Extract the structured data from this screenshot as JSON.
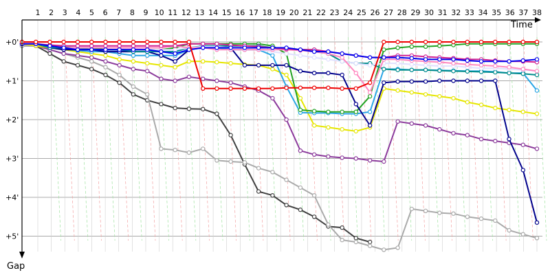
{
  "chart_data": {
    "type": "line",
    "title": "",
    "xlabel": "Time",
    "ylabel": "Gap",
    "x_ticks": [
      "1",
      "2",
      "3",
      "4",
      "5",
      "6",
      "7",
      "8",
      "9",
      "10",
      "11",
      "12",
      "13",
      "14",
      "15",
      "16",
      "17",
      "18",
      "19",
      "20",
      "21",
      "22",
      "23",
      "24",
      "25",
      "26",
      "27",
      "28",
      "29",
      "30",
      "31",
      "32",
      "33",
      "34",
      "35",
      "36",
      "37",
      "38"
    ],
    "y_ticks": [
      "+0'",
      "+1'",
      "+2'",
      "+3'",
      "+4'",
      "+5'"
    ],
    "ylim": [
      0,
      5.5
    ],
    "grid": true,
    "series": [
      {
        "color": "#404040",
        "values": [
          0.1,
          0.1,
          0.3,
          0.5,
          0.6,
          0.7,
          0.85,
          1.05,
          1.35,
          1.5,
          1.6,
          1.7,
          1.72,
          1.73,
          1.85,
          2.4,
          3.15,
          3.85,
          3.95,
          4.2,
          4.32,
          4.5,
          4.75,
          4.78,
          5.05,
          5.15,
          null,
          null,
          null,
          null,
          null,
          null,
          null,
          null,
          null,
          null,
          null,
          null
        ]
      },
      {
        "color": "#aaaaaa",
        "values": [
          0.1,
          0.1,
          0.2,
          0.3,
          0.4,
          0.5,
          0.65,
          0.85,
          1.15,
          1.35,
          2.75,
          2.78,
          2.85,
          2.75,
          3.05,
          3.08,
          3.1,
          3.25,
          3.35,
          3.55,
          3.75,
          3.95,
          4.7,
          5.1,
          5.15,
          5.25,
          5.35,
          5.3,
          4.3,
          4.35,
          4.4,
          4.42,
          4.5,
          4.55,
          4.6,
          4.85,
          4.95,
          5.05
        ]
      },
      {
        "color": "#8b3a9b",
        "values": [
          0.05,
          0.1,
          0.2,
          0.3,
          0.35,
          0.4,
          0.5,
          0.6,
          0.7,
          0.75,
          0.95,
          1.0,
          0.9,
          0.95,
          1.0,
          1.05,
          1.15,
          1.25,
          1.45,
          2.0,
          2.8,
          2.9,
          2.95,
          2.98,
          3.0,
          3.05,
          3.08,
          2.05,
          2.1,
          2.15,
          2.25,
          2.35,
          2.4,
          2.5,
          2.55,
          2.6,
          2.65,
          2.75
        ]
      },
      {
        "color": "#e6e600",
        "values": [
          0.05,
          0.1,
          0.15,
          0.2,
          0.25,
          0.3,
          0.35,
          0.45,
          0.5,
          0.55,
          0.6,
          0.65,
          0.5,
          0.5,
          0.52,
          0.55,
          0.58,
          0.6,
          0.7,
          0.85,
          1.45,
          2.15,
          2.2,
          2.25,
          2.3,
          2.2,
          1.2,
          1.25,
          1.3,
          1.35,
          1.4,
          1.45,
          1.55,
          1.62,
          1.7,
          1.75,
          1.8,
          1.85
        ]
      },
      {
        "color": "#2aa6e6",
        "values": [
          0.05,
          0.05,
          0.12,
          0.18,
          0.22,
          0.25,
          0.25,
          0.3,
          0.35,
          0.35,
          0.35,
          0.35,
          0.2,
          0.15,
          0.15,
          0.2,
          0.2,
          0.2,
          0.35,
          1.15,
          1.82,
          1.83,
          1.83,
          1.85,
          1.85,
          1.8,
          0.7,
          0.7,
          0.72,
          0.72,
          0.73,
          0.74,
          0.75,
          0.75,
          0.77,
          0.8,
          0.8,
          1.25
        ]
      },
      {
        "color": "#22a222",
        "values": [
          0.05,
          0.05,
          0.1,
          0.12,
          0.15,
          0.15,
          0.2,
          0.2,
          0.2,
          0.2,
          0.2,
          0.15,
          0.05,
          0.05,
          0.05,
          0.05,
          0.05,
          0.05,
          0.1,
          0.3,
          1.75,
          1.78,
          1.8,
          1.8,
          1.8,
          1.4,
          0.2,
          0.15,
          0.12,
          0.12,
          0.1,
          0.08,
          0.05,
          0.05,
          0.05,
          0.05,
          0.05,
          0.05
        ]
      },
      {
        "color": "#00008b",
        "values": [
          0.05,
          0.05,
          0.15,
          0.2,
          0.2,
          0.2,
          0.25,
          0.25,
          0.25,
          0.25,
          0.35,
          0.5,
          0.2,
          0.1,
          0.1,
          0.15,
          0.6,
          0.6,
          0.6,
          0.6,
          0.75,
          0.8,
          0.8,
          0.85,
          1.6,
          2.15,
          1.05,
          1.02,
          1.02,
          1.02,
          1.0,
          1.0,
          1.0,
          1.0,
          1.0,
          2.5,
          3.3,
          4.65
        ]
      },
      {
        "color": "#008b8b",
        "values": [
          0.05,
          0.05,
          0.15,
          0.15,
          0.15,
          0.2,
          0.2,
          0.2,
          0.25,
          0.25,
          0.25,
          0.25,
          0.15,
          0.1,
          0.1,
          0.1,
          0.1,
          0.1,
          0.15,
          0.2,
          0.2,
          0.2,
          0.3,
          0.5,
          0.55,
          0.55,
          0.7,
          0.72,
          0.72,
          0.72,
          0.74,
          0.75,
          0.76,
          0.77,
          0.78,
          0.8,
          0.82,
          0.85
        ]
      },
      {
        "color": "#e0e0ff",
        "values": [
          0.05,
          0.05,
          0.08,
          0.1,
          0.12,
          0.12,
          0.15,
          0.15,
          0.18,
          0.2,
          0.2,
          0.2,
          0.15,
          0.12,
          0.12,
          0.15,
          0.15,
          0.2,
          0.25,
          0.3,
          0.35,
          0.4,
          0.45,
          0.5,
          0.55,
          0.6,
          0.55,
          0.55,
          0.58,
          0.6,
          0.62,
          0.62,
          0.65,
          0.68,
          0.68,
          0.7,
          0.72,
          0.75
        ]
      },
      {
        "color": "#ff88c0",
        "values": [
          0.05,
          0.05,
          0.1,
          0.15,
          0.15,
          0.15,
          0.15,
          0.15,
          0.15,
          0.15,
          0.15,
          0.1,
          0.15,
          0.15,
          0.2,
          0.2,
          0.2,
          0.2,
          0.2,
          0.2,
          0.22,
          0.25,
          0.3,
          0.4,
          0.8,
          1.3,
          0.45,
          0.45,
          0.48,
          0.5,
          0.52,
          0.55,
          0.58,
          0.6,
          0.62,
          0.65,
          0.7,
          0.75
        ]
      },
      {
        "color": "#d02090",
        "values": [
          0.05,
          0.05,
          0.08,
          0.1,
          0.1,
          0.1,
          0.1,
          0.1,
          0.1,
          0.1,
          0.1,
          0.1,
          0.05,
          0.05,
          0.05,
          0.08,
          0.1,
          0.12,
          0.15,
          0.18,
          0.2,
          0.2,
          0.25,
          0.3,
          0.35,
          0.4,
          0.4,
          0.35,
          0.35,
          0.38,
          0.4,
          0.42,
          0.45,
          0.45,
          0.48,
          0.5,
          0.5,
          0.52
        ]
      },
      {
        "color": "#0000ee",
        "values": [
          0.05,
          0.05,
          0.1,
          0.15,
          0.2,
          0.2,
          0.2,
          0.2,
          0.2,
          0.2,
          0.25,
          0.3,
          0.2,
          0.15,
          0.15,
          0.15,
          0.15,
          0.15,
          0.15,
          0.15,
          0.2,
          0.25,
          0.25,
          0.3,
          0.35,
          0.4,
          0.4,
          0.4,
          0.42,
          0.45,
          0.45,
          0.45,
          0.48,
          0.5,
          0.5,
          0.5,
          0.48,
          0.45
        ]
      },
      {
        "color": "#ee0000",
        "values": [
          0.0,
          0.0,
          0.0,
          0.0,
          0.0,
          0.0,
          0.0,
          0.0,
          0.0,
          0.0,
          0.0,
          0.0,
          0.0,
          1.2,
          1.2,
          1.2,
          1.2,
          1.2,
          1.2,
          1.18,
          1.18,
          1.18,
          1.18,
          1.2,
          1.2,
          1.05,
          0.0,
          0.0,
          0.0,
          0.0,
          0.0,
          0.0,
          0.0,
          0.0,
          0.0,
          0.0,
          0.0,
          0.0
        ]
      }
    ]
  }
}
